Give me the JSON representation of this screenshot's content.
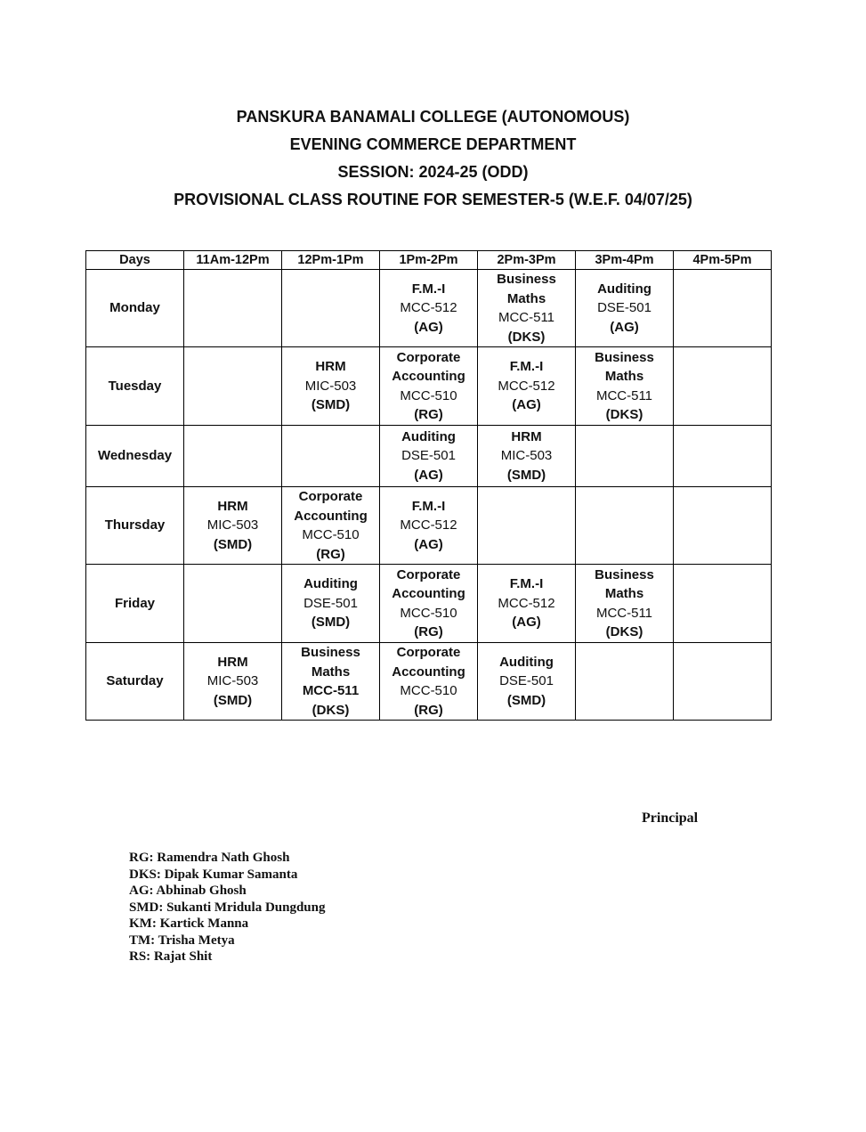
{
  "header": {
    "lines": [
      "PANSKURA BANAMALI COLLEGE (AUTONOMOUS)",
      "EVENING COMMERCE DEPARTMENT",
      "SESSION: 2024-25 (ODD)",
      "PROVISIONAL CLASS ROUTINE FOR SEMESTER-5 (W.E.F. 04/07/25)"
    ]
  },
  "routine": {
    "columns": [
      "Days",
      "11Am-12Pm",
      "12Pm-1Pm",
      "1Pm-2Pm",
      "2Pm-3Pm",
      "3Pm-4Pm",
      "4Pm-5Pm"
    ],
    "rows": [
      {
        "day": "Monday",
        "h": 87,
        "cells": [
          [],
          [],
          [
            {
              "t": "F.M.-I",
              "b": true
            },
            {
              "t": "MCC-512",
              "b": false
            },
            {
              "t": "(AG)",
              "b": true
            }
          ],
          [
            {
              "t": "Business",
              "b": true
            },
            {
              "t": "Maths",
              "b": true
            },
            {
              "t": "MCC-511",
              "b": false
            },
            {
              "t": "(DKS)",
              "b": true
            }
          ],
          [
            {
              "t": "Auditing",
              "b": true
            },
            {
              "t": "DSE-501",
              "b": false
            },
            {
              "t": "(AG)",
              "b": true
            }
          ],
          []
        ]
      },
      {
        "day": "Tuesday",
        "h": 88,
        "cells": [
          [],
          [
            {
              "t": "HRM",
              "b": true
            },
            {
              "t": "MIC-503",
              "b": false
            },
            {
              "t": "(SMD)",
              "b": true
            }
          ],
          [
            {
              "t": "Corporate",
              "b": true
            },
            {
              "t": "Accounting",
              "b": true
            },
            {
              "t": "MCC-510",
              "b": false
            },
            {
              "t": "(RG)",
              "b": true
            }
          ],
          [
            {
              "t": "F.M.-I",
              "b": true
            },
            {
              "t": "MCC-512",
              "b": false
            },
            {
              "t": "(AG)",
              "b": true
            }
          ],
          [
            {
              "t": "Business",
              "b": true
            },
            {
              "t": "Maths",
              "b": true
            },
            {
              "t": "MCC-511",
              "b": false
            },
            {
              "t": "(DKS)",
              "b": true
            }
          ],
          []
        ]
      },
      {
        "day": "Wednesday",
        "h": 69,
        "cells": [
          [],
          [],
          [
            {
              "t": "Auditing",
              "b": true
            },
            {
              "t": "DSE-501",
              "b": false
            },
            {
              "t": "(AG)",
              "b": true
            }
          ],
          [
            {
              "t": "HRM",
              "b": true
            },
            {
              "t": "MIC-503",
              "b": false
            },
            {
              "t": "(SMD)",
              "b": true
            }
          ],
          [],
          []
        ]
      },
      {
        "day": "Thursday",
        "h": 87,
        "cells": [
          [
            {
              "t": "HRM",
              "b": true
            },
            {
              "t": "MIC-503",
              "b": false
            },
            {
              "t": "(SMD)",
              "b": true
            }
          ],
          [
            {
              "t": "Corporate",
              "b": true
            },
            {
              "t": "Accounting",
              "b": true
            },
            {
              "t": "MCC-510",
              "b": false
            },
            {
              "t": "(RG)",
              "b": true
            }
          ],
          [
            {
              "t": "F.M.-I",
              "b": true
            },
            {
              "t": "MCC-512",
              "b": false
            },
            {
              "t": "(AG)",
              "b": true
            }
          ],
          [],
          [],
          []
        ]
      },
      {
        "day": "Friday",
        "h": 88,
        "cells": [
          [],
          [
            {
              "t": "Auditing",
              "b": true
            },
            {
              "t": "DSE-501",
              "b": false
            },
            {
              "t": "(SMD)",
              "b": true
            }
          ],
          [
            {
              "t": "Corporate",
              "b": true
            },
            {
              "t": "Accounting",
              "b": true
            },
            {
              "t": "MCC-510",
              "b": false
            },
            {
              "t": "(RG)",
              "b": true
            }
          ],
          [
            {
              "t": "F.M.-I",
              "b": true
            },
            {
              "t": "MCC-512",
              "b": false
            },
            {
              "t": "(AG)",
              "b": true
            }
          ],
          [
            {
              "t": "Business",
              "b": true
            },
            {
              "t": "Maths",
              "b": true
            },
            {
              "t": "MCC-511",
              "b": false
            },
            {
              "t": "(DKS)",
              "b": true
            }
          ],
          []
        ]
      },
      {
        "day": "Saturday",
        "h": 86,
        "cells": [
          [
            {
              "t": "HRM",
              "b": true
            },
            {
              "t": "MIC-503",
              "b": false
            },
            {
              "t": "(SMD)",
              "b": true
            }
          ],
          [
            {
              "t": "Business",
              "b": true
            },
            {
              "t": "Maths",
              "b": true
            },
            {
              "t": "MCC-511",
              "b": true
            },
            {
              "t": "(DKS)",
              "b": true
            }
          ],
          [
            {
              "t": "Corporate",
              "b": true
            },
            {
              "t": "Accounting",
              "b": true
            },
            {
              "t": "MCC-510",
              "b": false
            },
            {
              "t": "(RG)",
              "b": true
            }
          ],
          [
            {
              "t": "Auditing",
              "b": true
            },
            {
              "t": "DSE-501",
              "b": false
            },
            {
              "t": "(SMD)",
              "b": true
            }
          ],
          [],
          []
        ]
      }
    ]
  },
  "signature": {
    "label": "Principal"
  },
  "legend": [
    "RG: Ramendra Nath Ghosh",
    "DKS: Dipak Kumar Samanta",
    "AG: Abhinab Ghosh",
    "SMD: Sukanti Mridula Dungdung",
    "KM: Kartick Manna",
    "TM: Trisha Metya",
    "RS: Rajat Shit"
  ]
}
